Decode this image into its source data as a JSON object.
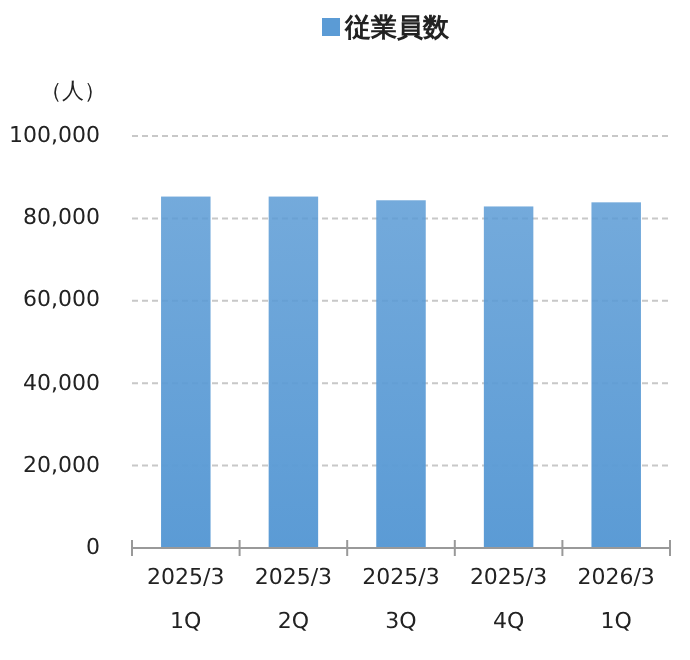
{
  "chart_data": {
    "type": "bar",
    "ylabel": "（人）",
    "categories": [
      "2025/3 1Q",
      "2025/3 2Q",
      "2025/3 3Q",
      "2025/3 4Q",
      "2026/3 1Q"
    ],
    "series": [
      {
        "name": "従業員数",
        "color": "#5b9bd5",
        "values": [
          85300,
          85300,
          84400,
          82900,
          83900
        ]
      }
    ],
    "ylim": [
      0,
      100000
    ],
    "yticks": [
      {
        "value": 0,
        "label": "0"
      },
      {
        "value": 20000,
        "label": "20,000"
      },
      {
        "value": 40000,
        "label": "40,000"
      },
      {
        "value": 60000,
        "label": "60,000"
      },
      {
        "value": 80000,
        "label": "80,000"
      },
      {
        "value": 100000,
        "label": "100,000"
      }
    ],
    "grid": "y",
    "legend": "top"
  }
}
